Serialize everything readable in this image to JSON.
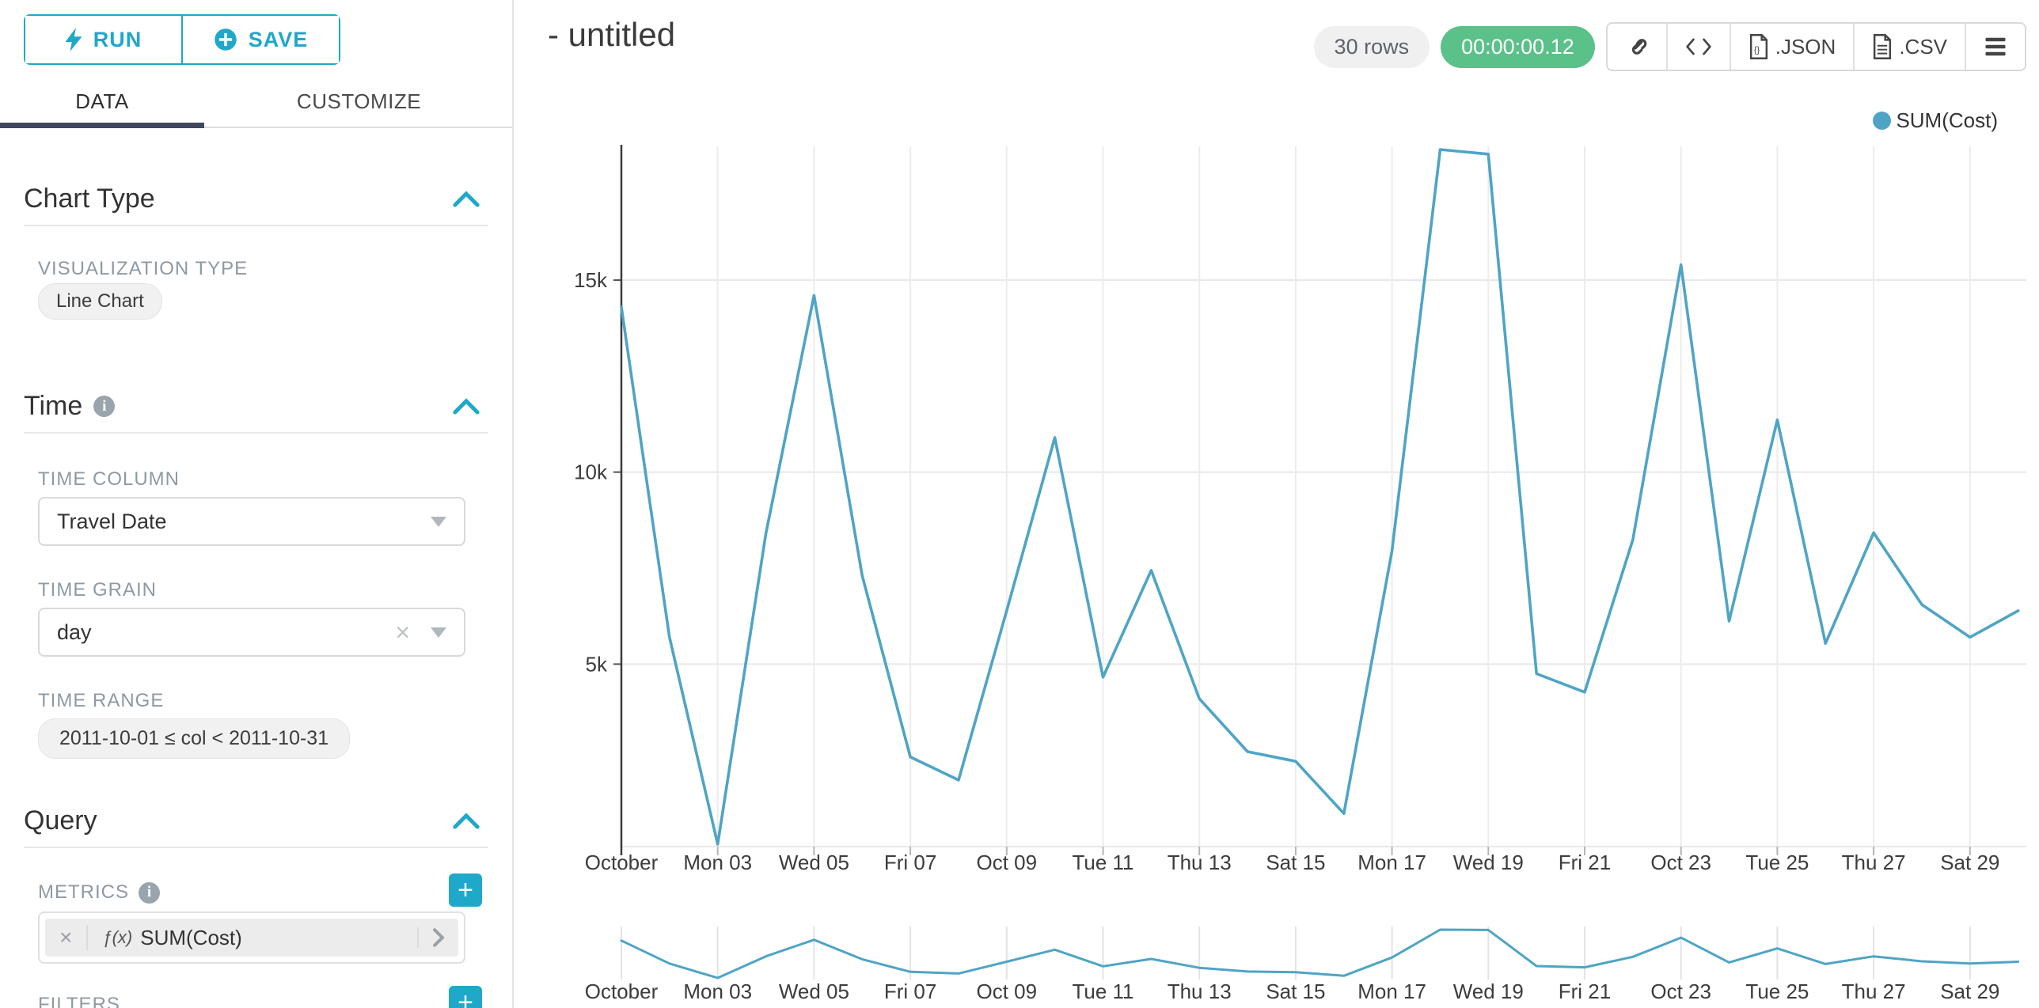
{
  "sidebar": {
    "run_label": "RUN",
    "save_label": "SAVE",
    "tabs": [
      {
        "label": "DATA",
        "active": true
      },
      {
        "label": "CUSTOMIZE",
        "active": false
      }
    ],
    "chart_type_section": {
      "title": "Chart Type",
      "viz_type_label": "VISUALIZATION TYPE",
      "viz_type_value": "Line Chart"
    },
    "time_section": {
      "title": "Time",
      "time_column_label": "TIME COLUMN",
      "time_column_value": "Travel Date",
      "time_grain_label": "TIME GRAIN",
      "time_grain_value": "day",
      "time_range_label": "TIME RANGE",
      "time_range_value": "2011-10-01 ≤ col < 2011-10-31"
    },
    "query_section": {
      "title": "Query",
      "metrics_label": "METRICS",
      "metric_prefix": "ƒ(x)",
      "metric_value": "SUM(Cost)",
      "filters_label": "FILTERS"
    }
  },
  "header": {
    "title": "- untitled",
    "row_count": "30 rows",
    "query_time": "00:00:00.12",
    "export_json_label": ".JSON",
    "export_csv_label": ".CSV"
  },
  "legend": {
    "label": "SUM(Cost)",
    "color": "#4FA4C6"
  },
  "chart_data": {
    "type": "line",
    "title": "- untitled",
    "x": [
      "2011-10-01",
      "2011-10-02",
      "2011-10-03",
      "2011-10-04",
      "2011-10-05",
      "2011-10-06",
      "2011-10-07",
      "2011-10-08",
      "2011-10-09",
      "2011-10-10",
      "2011-10-11",
      "2011-10-12",
      "2011-10-13",
      "2011-10-14",
      "2011-10-15",
      "2011-10-16",
      "2011-10-17",
      "2011-10-18",
      "2011-10-19",
      "2011-10-20",
      "2011-10-21",
      "2011-10-22",
      "2011-10-23",
      "2011-10-24",
      "2011-10-25",
      "2011-10-26",
      "2011-10-27",
      "2011-10-28",
      "2011-10-29",
      "2011-10-30"
    ],
    "series": [
      {
        "name": "SUM(Cost)",
        "values": [
          14300,
          5700,
          310,
          8400,
          14600,
          7300,
          2580,
          1980,
          6390,
          10900,
          4660,
          7440,
          4100,
          2720,
          2470,
          1110,
          7950,
          18400,
          18280,
          4750,
          4270,
          8240,
          15400,
          6120,
          11360,
          5540,
          8420,
          6550,
          5700,
          6390
        ]
      }
    ],
    "x_tick_labels": [
      "October",
      "Mon 03",
      "Wed 05",
      "Fri 07",
      "Oct 09",
      "Tue 11",
      "Thu 13",
      "Sat 15",
      "Mon 17",
      "Wed 19",
      "Fri 21",
      "Oct 23",
      "Tue 25",
      "Thu 27",
      "Sat 29"
    ],
    "x_tick_every_n_days": 2,
    "y_tick_labels": [
      "5k",
      "10k",
      "15k"
    ],
    "y_gridline_values": [
      5000,
      10000,
      15000
    ],
    "ylim": [
      310,
      18400
    ],
    "xlabel": "",
    "ylabel": "",
    "grid": true,
    "legend_position": "top-right",
    "has_context_mini_chart": true
  }
}
